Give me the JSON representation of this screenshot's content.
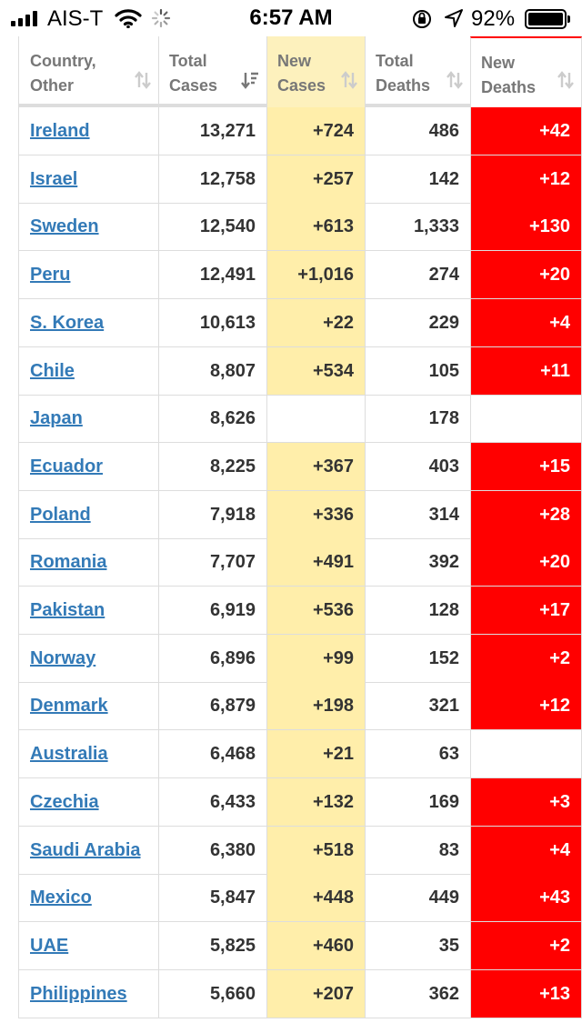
{
  "status_bar": {
    "carrier": "AIS-T",
    "time": "6:57 AM",
    "battery": "92%"
  },
  "table": {
    "headers": {
      "country": [
        "Country,",
        "Other"
      ],
      "total_cases": [
        "Total",
        "Cases"
      ],
      "new_cases": [
        "New",
        "Cases"
      ],
      "total_deaths": [
        "Total",
        "Deaths"
      ],
      "new_deaths": [
        "New",
        "Deaths"
      ]
    },
    "rows": [
      {
        "country": "Ireland",
        "total_cases": "13,271",
        "new_cases": "+724",
        "total_deaths": "486",
        "new_deaths": "+42"
      },
      {
        "country": "Israel",
        "total_cases": "12,758",
        "new_cases": "+257",
        "total_deaths": "142",
        "new_deaths": "+12"
      },
      {
        "country": "Sweden",
        "total_cases": "12,540",
        "new_cases": "+613",
        "total_deaths": "1,333",
        "new_deaths": "+130"
      },
      {
        "country": "Peru",
        "total_cases": "12,491",
        "new_cases": "+1,016",
        "total_deaths": "274",
        "new_deaths": "+20"
      },
      {
        "country": "S. Korea",
        "total_cases": "10,613",
        "new_cases": "+22",
        "total_deaths": "229",
        "new_deaths": "+4"
      },
      {
        "country": "Chile",
        "total_cases": "8,807",
        "new_cases": "+534",
        "total_deaths": "105",
        "new_deaths": "+11"
      },
      {
        "country": "Japan",
        "total_cases": "8,626",
        "new_cases": "",
        "total_deaths": "178",
        "new_deaths": ""
      },
      {
        "country": "Ecuador",
        "total_cases": "8,225",
        "new_cases": "+367",
        "total_deaths": "403",
        "new_deaths": "+15"
      },
      {
        "country": "Poland",
        "total_cases": "7,918",
        "new_cases": "+336",
        "total_deaths": "314",
        "new_deaths": "+28"
      },
      {
        "country": "Romania",
        "total_cases": "7,707",
        "new_cases": "+491",
        "total_deaths": "392",
        "new_deaths": "+20"
      },
      {
        "country": "Pakistan",
        "total_cases": "6,919",
        "new_cases": "+536",
        "total_deaths": "128",
        "new_deaths": "+17"
      },
      {
        "country": "Norway",
        "total_cases": "6,896",
        "new_cases": "+99",
        "total_deaths": "152",
        "new_deaths": "+2"
      },
      {
        "country": "Denmark",
        "total_cases": "6,879",
        "new_cases": "+198",
        "total_deaths": "321",
        "new_deaths": "+12"
      },
      {
        "country": "Australia",
        "total_cases": "6,468",
        "new_cases": "+21",
        "total_deaths": "63",
        "new_deaths": ""
      },
      {
        "country": "Czechia",
        "total_cases": "6,433",
        "new_cases": "+132",
        "total_deaths": "169",
        "new_deaths": "+3"
      },
      {
        "country": "Saudi Arabia",
        "total_cases": "6,380",
        "new_cases": "+518",
        "total_deaths": "83",
        "new_deaths": "+4"
      },
      {
        "country": "Mexico",
        "total_cases": "5,847",
        "new_cases": "+448",
        "total_deaths": "449",
        "new_deaths": "+43"
      },
      {
        "country": "UAE",
        "total_cases": "5,825",
        "new_cases": "+460",
        "total_deaths": "35",
        "new_deaths": "+2"
      },
      {
        "country": "Philippines",
        "total_cases": "5,660",
        "new_cases": "+207",
        "total_deaths": "362",
        "new_deaths": "+13"
      }
    ]
  },
  "colors": {
    "new_cases_bg": "#ffeeaa",
    "new_deaths_bg": "#ff0000",
    "link": "#337ab7"
  }
}
